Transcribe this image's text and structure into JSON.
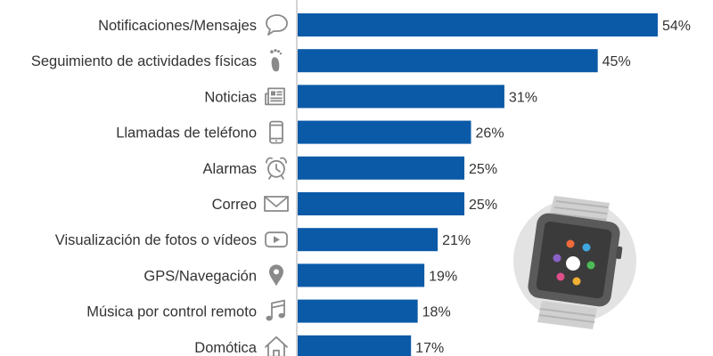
{
  "chart_data": {
    "type": "bar",
    "orientation": "horizontal",
    "categories": [
      "Notificaciones/Mensajes",
      "Seguimiento de actividades físicas",
      "Noticias",
      "Llamadas de teléfono",
      "Alarmas",
      "Correo",
      "Visualización de fotos o vídeos",
      "GPS/Navegación",
      "Música por control remoto",
      "Domótica"
    ],
    "values": [
      54,
      45,
      31,
      26,
      25,
      25,
      21,
      19,
      18,
      17
    ],
    "value_labels": [
      "54%",
      "45%",
      "31%",
      "26%",
      "25%",
      "25%",
      "21%",
      "19%",
      "18%",
      "17%"
    ],
    "icons": [
      "speech-bubble-icon",
      "footprint-icon",
      "newspaper-icon",
      "smartphone-icon",
      "alarm-clock-icon",
      "envelope-icon",
      "play-video-icon",
      "map-pin-icon",
      "music-note-icon",
      "home-icon"
    ],
    "xlim": [
      0,
      54
    ],
    "grid": false,
    "legend": "none",
    "colors": {
      "bar": "#0b5aa8",
      "text": "#333333",
      "icon": "#8a8a8a",
      "axis": "#aaaaaa"
    }
  },
  "illustration": {
    "name": "smartwatch-illustration"
  }
}
